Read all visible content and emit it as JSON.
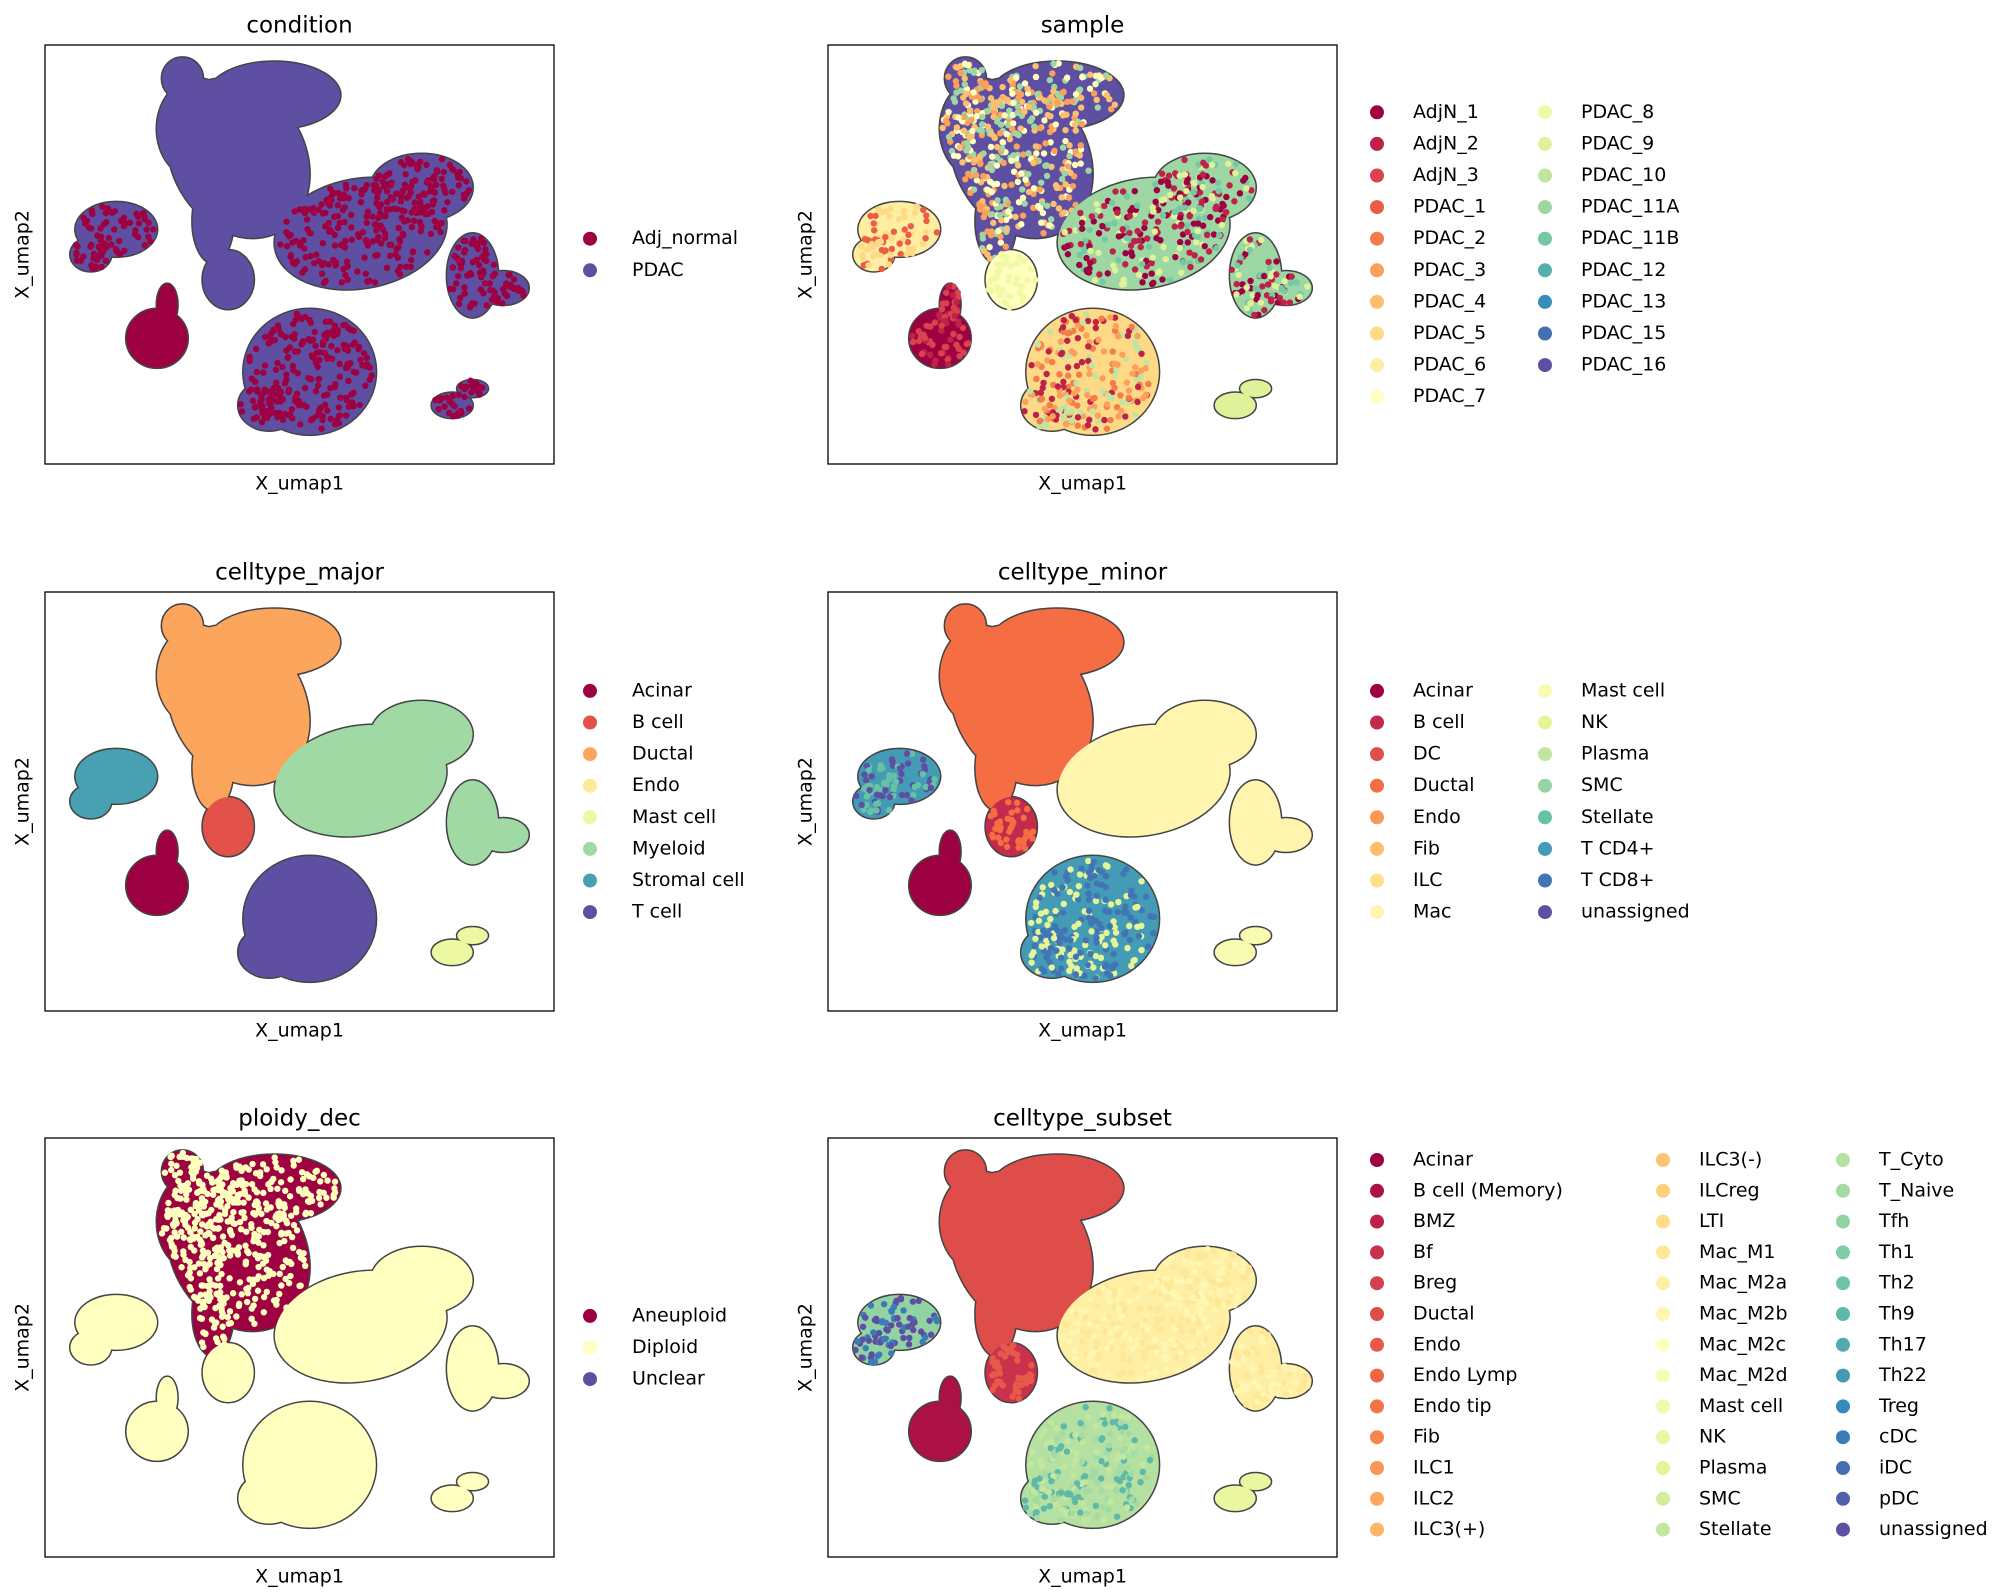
{
  "chart_data": [
    {
      "type": "scatter",
      "title": "condition",
      "xlabel": "X_umap1",
      "ylabel": "X_umap2",
      "colormap": "Spectral",
      "categories": [
        "Adj_normal",
        "PDAC"
      ]
    },
    {
      "type": "scatter",
      "title": "sample",
      "xlabel": "X_umap1",
      "ylabel": "X_umap2",
      "colormap": "Spectral",
      "categories": [
        "AdjN_1",
        "AdjN_2",
        "AdjN_3",
        "PDAC_1",
        "PDAC_2",
        "PDAC_3",
        "PDAC_4",
        "PDAC_5",
        "PDAC_6",
        "PDAC_7",
        "PDAC_8",
        "PDAC_9",
        "PDAC_10",
        "PDAC_11A",
        "PDAC_11B",
        "PDAC_12",
        "PDAC_13",
        "PDAC_15",
        "PDAC_16"
      ]
    },
    {
      "type": "scatter",
      "title": "celltype_major",
      "xlabel": "X_umap1",
      "ylabel": "X_umap2",
      "colormap": "Spectral",
      "categories": [
        "Acinar",
        "B cell",
        "Ductal",
        "Endo",
        "Mast cell",
        "Myeloid",
        "Stromal cell",
        "T cell"
      ]
    },
    {
      "type": "scatter",
      "title": "celltype_minor",
      "xlabel": "X_umap1",
      "ylabel": "X_umap2",
      "colormap": "Spectral",
      "categories": [
        "Acinar",
        "B cell",
        "DC",
        "Ductal",
        "Endo",
        "Fib",
        "ILC",
        "Mac",
        "Mast cell",
        "NK",
        "Plasma",
        "SMC",
        "Stellate",
        "T CD4+",
        "T CD8+",
        "unassigned"
      ]
    },
    {
      "type": "scatter",
      "title": "ploidy_dec",
      "xlabel": "X_umap1",
      "ylabel": "X_umap2",
      "colormap": "Spectral",
      "categories": [
        "Aneuploid",
        "Diploid",
        "Unclear"
      ]
    },
    {
      "type": "scatter",
      "title": "celltype_subset",
      "xlabel": "X_umap1",
      "ylabel": "X_umap2",
      "colormap": "Spectral",
      "categories": [
        "Acinar",
        "B cell (Memory)",
        "BMZ",
        "Bf",
        "Breg",
        "Ductal",
        "Endo",
        "Endo Lymp",
        "Endo tip",
        "Fib",
        "ILC1",
        "ILC2",
        "ILC3(+)",
        "ILC3(-)",
        "ILCreg",
        "LTI",
        "Mac_M1",
        "Mac_M2a",
        "Mac_M2b",
        "Mac_M2c",
        "Mac_M2d",
        "Mast cell",
        "NK",
        "Plasma",
        "SMC",
        "Stellate",
        "T_Cyto",
        "T_Naive",
        "Tfh",
        "Th1",
        "Th2",
        "Th9",
        "Th17",
        "Th22",
        "Treg",
        "cDC",
        "iDC",
        "pDC",
        "unassigned"
      ]
    }
  ]
}
